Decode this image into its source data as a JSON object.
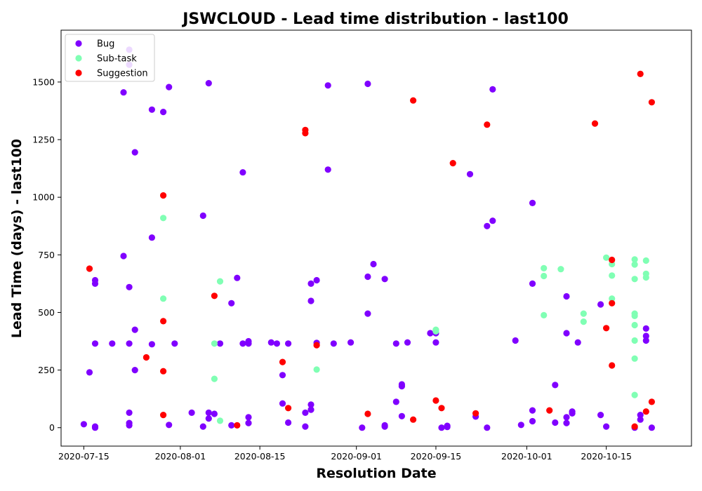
{
  "chart_data": {
    "type": "scatter",
    "title": "JSWCLOUD - Lead time distribution - last100",
    "xlabel": "Resolution Date",
    "ylabel": "Lead Time (days) - last100",
    "x_axis": {
      "type": "date",
      "range": [
        "2020-07-11",
        "2020-10-30"
      ],
      "ticks": [
        {
          "date": "2020-07-15",
          "label": "2020-07-15"
        },
        {
          "date": "2020-08-01",
          "label": "2020-08-01"
        },
        {
          "date": "2020-08-15",
          "label": "2020-08-15"
        },
        {
          "date": "2020-09-01",
          "label": "2020-09-01"
        },
        {
          "date": "2020-09-15",
          "label": "2020-09-15"
        },
        {
          "date": "2020-10-01",
          "label": "2020-10-01"
        },
        {
          "date": "2020-10-15",
          "label": "2020-10-15"
        }
      ]
    },
    "y_axis": {
      "range": [
        -80,
        1725
      ],
      "ticks": [
        0,
        250,
        500,
        750,
        1000,
        1250,
        1500
      ]
    },
    "grid": false,
    "legend": {
      "placement": "top-left",
      "entries": [
        {
          "label": "Bug",
          "color": "#8000ff"
        },
        {
          "label": "Sub-task",
          "color": "#80ffb4"
        },
        {
          "label": "Suggestion",
          "color": "#ff0000"
        }
      ]
    },
    "series": [
      {
        "name": "Bug",
        "color": "#8000ff",
        "points": [
          [
            "2020-07-15",
            15
          ],
          [
            "2020-07-16",
            240
          ],
          [
            "2020-07-17",
            0
          ],
          [
            "2020-07-17",
            5
          ],
          [
            "2020-07-17",
            640
          ],
          [
            "2020-07-17",
            625
          ],
          [
            "2020-07-17",
            365
          ],
          [
            "2020-07-20",
            365
          ],
          [
            "2020-07-22",
            745
          ],
          [
            "2020-07-22",
            1455
          ],
          [
            "2020-07-23",
            1575
          ],
          [
            "2020-07-23",
            1640
          ],
          [
            "2020-07-23",
            610
          ],
          [
            "2020-07-23",
            365
          ],
          [
            "2020-07-23",
            65
          ],
          [
            "2020-07-23",
            20
          ],
          [
            "2020-07-23",
            10
          ],
          [
            "2020-07-24",
            1195
          ],
          [
            "2020-07-24",
            425
          ],
          [
            "2020-07-24",
            250
          ],
          [
            "2020-07-27",
            1380
          ],
          [
            "2020-07-27",
            825
          ],
          [
            "2020-07-27",
            362
          ],
          [
            "2020-07-29",
            1370
          ],
          [
            "2020-07-30",
            1478
          ],
          [
            "2020-07-30",
            12
          ],
          [
            "2020-07-31",
            365
          ],
          [
            "2020-08-03",
            65
          ],
          [
            "2020-08-05",
            920
          ],
          [
            "2020-08-05",
            5
          ],
          [
            "2020-08-06",
            40
          ],
          [
            "2020-08-06",
            1495
          ],
          [
            "2020-08-06",
            65
          ],
          [
            "2020-08-07",
            60
          ],
          [
            "2020-08-08",
            365
          ],
          [
            "2020-08-10",
            540
          ],
          [
            "2020-08-10",
            10
          ],
          [
            "2020-08-11",
            650
          ],
          [
            "2020-08-12",
            1108
          ],
          [
            "2020-08-12",
            365
          ],
          [
            "2020-08-13",
            375
          ],
          [
            "2020-08-13",
            365
          ],
          [
            "2020-08-13",
            20
          ],
          [
            "2020-08-13",
            45
          ],
          [
            "2020-08-17",
            370
          ],
          [
            "2020-08-18",
            365
          ],
          [
            "2020-08-19",
            228
          ],
          [
            "2020-08-19",
            105
          ],
          [
            "2020-08-20",
            365
          ],
          [
            "2020-08-20",
            22
          ],
          [
            "2020-08-23",
            65
          ],
          [
            "2020-08-23",
            5
          ],
          [
            "2020-08-24",
            625
          ],
          [
            "2020-08-24",
            550
          ],
          [
            "2020-08-24",
            100
          ],
          [
            "2020-08-24",
            78
          ],
          [
            "2020-08-25",
            640
          ],
          [
            "2020-08-25",
            368
          ],
          [
            "2020-08-27",
            1485
          ],
          [
            "2020-08-27",
            1120
          ],
          [
            "2020-08-28",
            365
          ],
          [
            "2020-08-31",
            370
          ],
          [
            "2020-09-02",
            0
          ],
          [
            "2020-09-03",
            1492
          ],
          [
            "2020-09-03",
            655
          ],
          [
            "2020-09-03",
            495
          ],
          [
            "2020-09-04",
            710
          ],
          [
            "2020-09-06",
            10
          ],
          [
            "2020-09-06",
            5
          ],
          [
            "2020-09-06",
            645
          ],
          [
            "2020-09-08",
            112
          ],
          [
            "2020-09-08",
            365
          ],
          [
            "2020-09-09",
            50
          ],
          [
            "2020-09-09",
            188
          ],
          [
            "2020-09-09",
            180
          ],
          [
            "2020-09-10",
            370
          ],
          [
            "2020-09-14",
            410
          ],
          [
            "2020-09-15",
            410
          ],
          [
            "2020-09-15",
            370
          ],
          [
            "2020-09-16",
            0
          ],
          [
            "2020-09-17",
            8
          ],
          [
            "2020-09-17",
            3
          ],
          [
            "2020-09-21",
            1100
          ],
          [
            "2020-09-22",
            48
          ],
          [
            "2020-09-24",
            0
          ],
          [
            "2020-09-24",
            875
          ],
          [
            "2020-09-25",
            898
          ],
          [
            "2020-09-25",
            1468
          ],
          [
            "2020-09-29",
            378
          ],
          [
            "2020-09-30",
            12
          ],
          [
            "2020-10-02",
            975
          ],
          [
            "2020-10-02",
            625
          ],
          [
            "2020-10-02",
            75
          ],
          [
            "2020-10-02",
            28
          ],
          [
            "2020-10-06",
            185
          ],
          [
            "2020-10-06",
            22
          ],
          [
            "2020-10-08",
            570
          ],
          [
            "2020-10-08",
            410
          ],
          [
            "2020-10-08",
            45
          ],
          [
            "2020-10-08",
            20
          ],
          [
            "2020-10-09",
            70
          ],
          [
            "2020-10-09",
            62
          ],
          [
            "2020-10-10",
            370
          ],
          [
            "2020-10-14",
            535
          ],
          [
            "2020-10-14",
            55
          ],
          [
            "2020-10-15",
            5
          ],
          [
            "2020-10-20",
            0
          ],
          [
            "2020-10-21",
            55
          ],
          [
            "2020-10-21",
            35
          ],
          [
            "2020-10-22",
            430
          ],
          [
            "2020-10-22",
            398
          ],
          [
            "2020-10-22",
            378
          ],
          [
            "2020-10-23",
            0
          ]
        ]
      },
      {
        "name": "Sub-task",
        "color": "#80ffb4",
        "points": [
          [
            "2020-07-29",
            910
          ],
          [
            "2020-07-29",
            560
          ],
          [
            "2020-08-07",
            365
          ],
          [
            "2020-08-07",
            212
          ],
          [
            "2020-08-08",
            635
          ],
          [
            "2020-08-08",
            30
          ],
          [
            "2020-08-25",
            252
          ],
          [
            "2020-09-15",
            425
          ],
          [
            "2020-09-15",
            418
          ],
          [
            "2020-10-04",
            692
          ],
          [
            "2020-10-04",
            658
          ],
          [
            "2020-10-04",
            488
          ],
          [
            "2020-10-07",
            688
          ],
          [
            "2020-10-11",
            495
          ],
          [
            "2020-10-11",
            460
          ],
          [
            "2020-10-15",
            738
          ],
          [
            "2020-10-16",
            710
          ],
          [
            "2020-10-16",
            660
          ],
          [
            "2020-10-16",
            560
          ],
          [
            "2020-10-20",
            730
          ],
          [
            "2020-10-20",
            708
          ],
          [
            "2020-10-20",
            645
          ],
          [
            "2020-10-20",
            495
          ],
          [
            "2020-10-20",
            485
          ],
          [
            "2020-10-20",
            445
          ],
          [
            "2020-10-20",
            378
          ],
          [
            "2020-10-20",
            300
          ],
          [
            "2020-10-20",
            142
          ],
          [
            "2020-10-22",
            725
          ],
          [
            "2020-10-22",
            668
          ],
          [
            "2020-10-22",
            652
          ]
        ]
      },
      {
        "name": "Suggestion",
        "color": "#ff0000",
        "points": [
          [
            "2020-07-16",
            690
          ],
          [
            "2020-07-26",
            305
          ],
          [
            "2020-07-29",
            1008
          ],
          [
            "2020-07-29",
            462
          ],
          [
            "2020-07-29",
            245
          ],
          [
            "2020-07-29",
            55
          ],
          [
            "2020-08-07",
            572
          ],
          [
            "2020-08-11",
            10
          ],
          [
            "2020-08-19",
            285
          ],
          [
            "2020-08-20",
            85
          ],
          [
            "2020-08-23",
            1292
          ],
          [
            "2020-08-23",
            1278
          ],
          [
            "2020-08-25",
            358
          ],
          [
            "2020-09-03",
            60
          ],
          [
            "2020-09-11",
            1420
          ],
          [
            "2020-09-11",
            35
          ],
          [
            "2020-09-15",
            118
          ],
          [
            "2020-09-16",
            85
          ],
          [
            "2020-09-18",
            1148
          ],
          [
            "2020-09-22",
            62
          ],
          [
            "2020-09-24",
            1315
          ],
          [
            "2020-10-05",
            75
          ],
          [
            "2020-10-13",
            1320
          ],
          [
            "2020-10-15",
            432
          ],
          [
            "2020-10-16",
            728
          ],
          [
            "2020-10-16",
            540
          ],
          [
            "2020-10-16",
            270
          ],
          [
            "2020-10-20",
            5
          ],
          [
            "2020-10-21",
            1535
          ],
          [
            "2020-10-22",
            70
          ],
          [
            "2020-10-23",
            1412
          ],
          [
            "2020-10-23",
            112
          ]
        ]
      }
    ]
  }
}
